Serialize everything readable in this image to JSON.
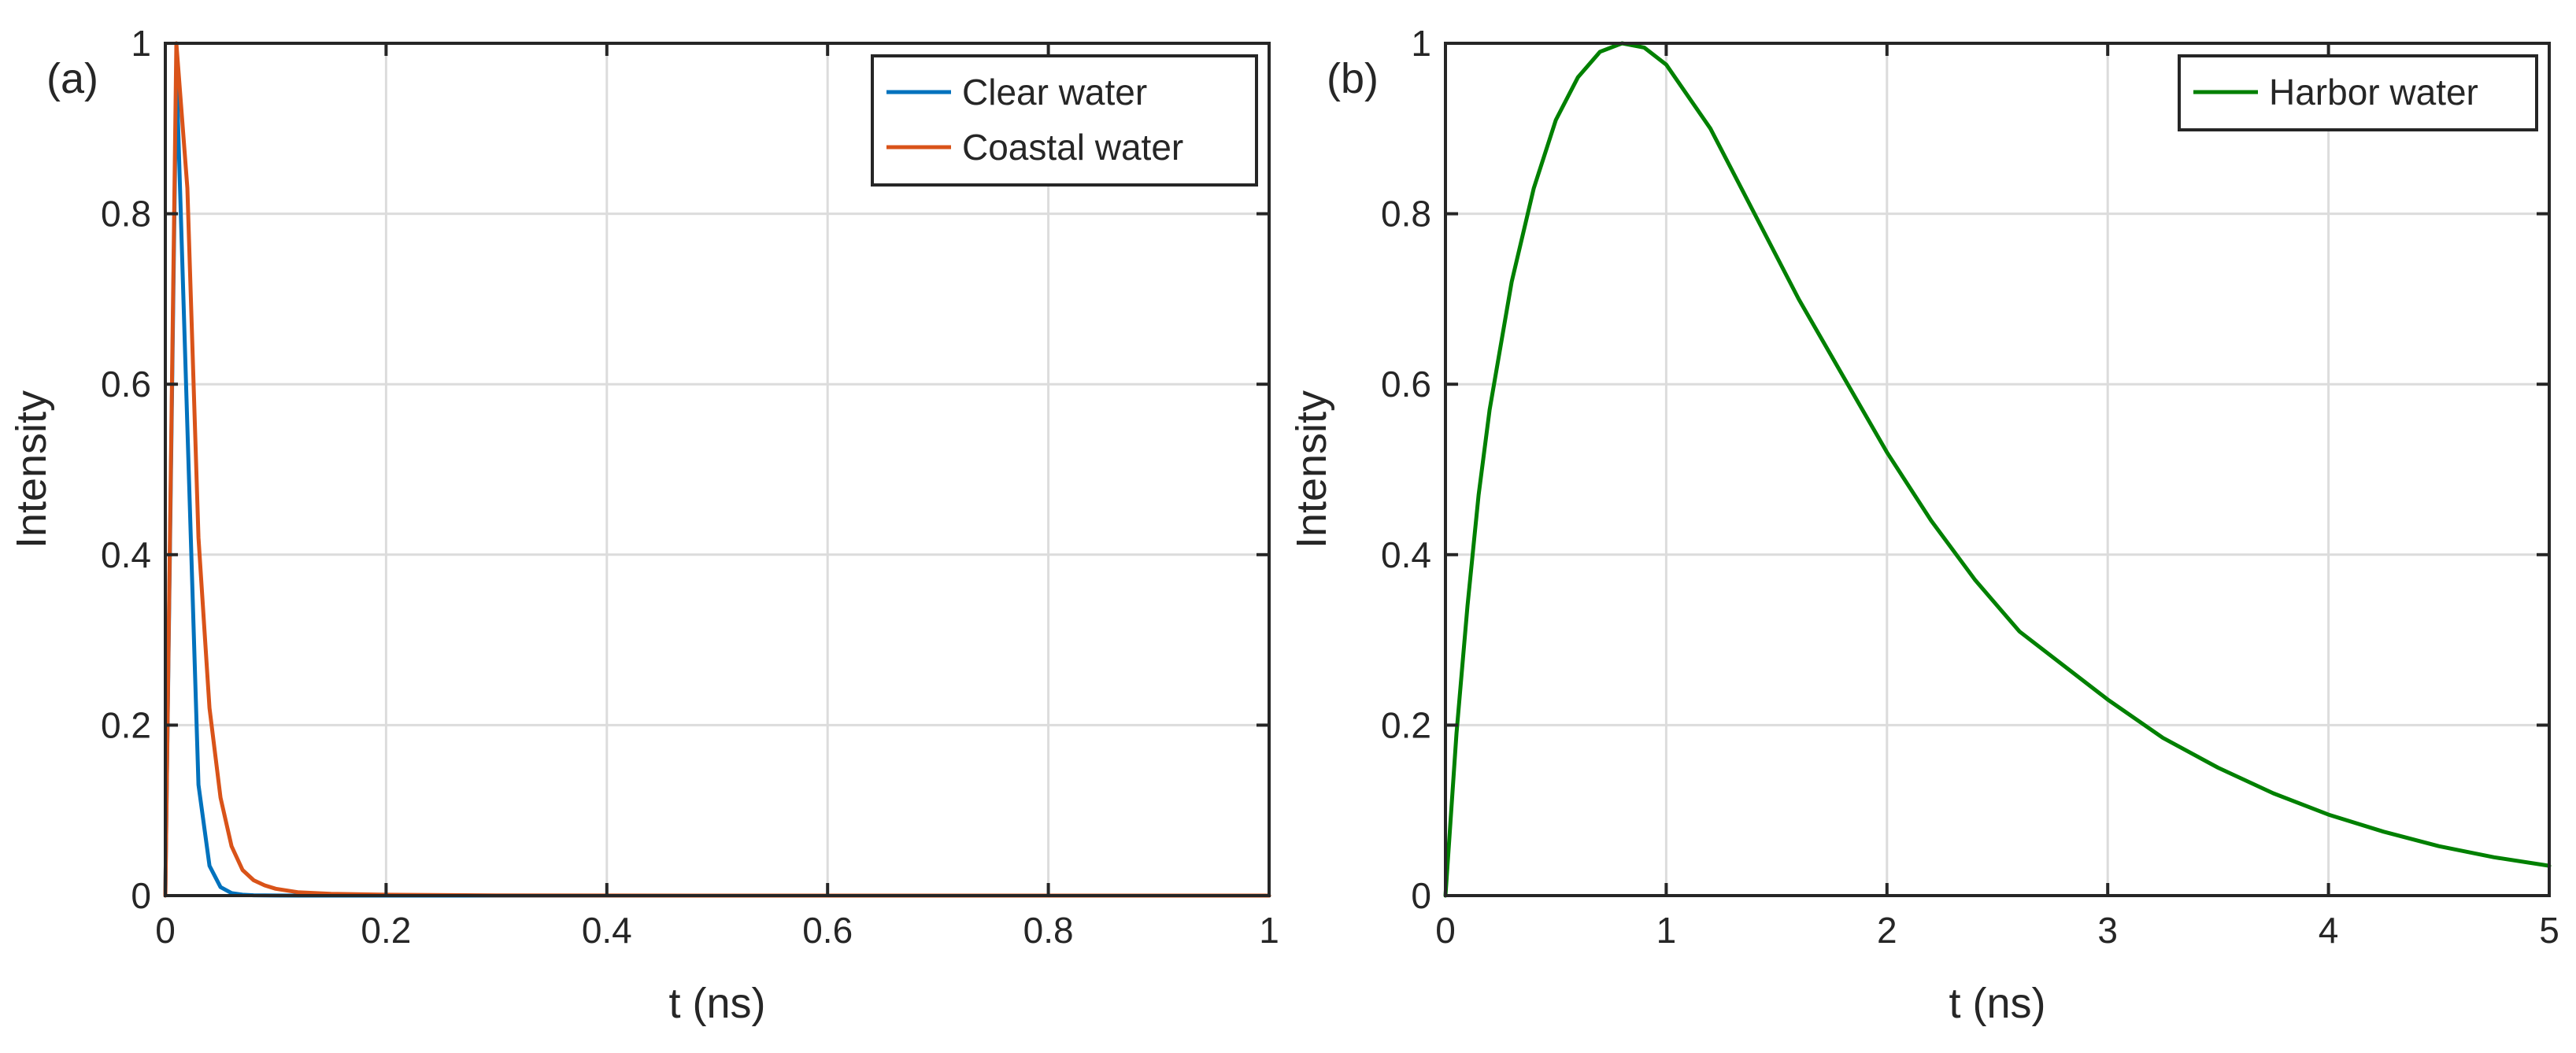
{
  "chart_data": [
    {
      "type": "line",
      "panel_label": "(a)",
      "title": "",
      "xlabel": "t (ns)",
      "ylabel": "Intensity",
      "xlim": [
        0,
        1
      ],
      "ylim": [
        0,
        1
      ],
      "grid": true,
      "legend_position": "top-right",
      "x_ticks": [
        0,
        0.2,
        0.4,
        0.6,
        0.8,
        1
      ],
      "x_tick_labels": [
        "0",
        "0.2",
        "0.4",
        "0.6",
        "0.8",
        "1"
      ],
      "y_ticks": [
        0,
        0.2,
        0.4,
        0.6,
        0.8,
        1
      ],
      "y_tick_labels": [
        "0",
        "0.2",
        "0.4",
        "0.6",
        "0.8",
        "1"
      ],
      "series": [
        {
          "name": "Clear water",
          "color": "#0072BD",
          "x": [
            0,
            0.01,
            0.02,
            0.03,
            0.04,
            0.05,
            0.06,
            0.07,
            0.08,
            0.1,
            0.15,
            0.2,
            0.3,
            0.5,
            1.0
          ],
          "y": [
            0,
            0.97,
            0.55,
            0.13,
            0.035,
            0.01,
            0.003,
            0.001,
            0.0004,
            0.0001,
            0,
            0,
            0,
            0,
            0
          ]
        },
        {
          "name": "Coastal water",
          "color": "#D95319",
          "x": [
            0,
            0.01,
            0.02,
            0.03,
            0.04,
            0.05,
            0.06,
            0.07,
            0.08,
            0.09,
            0.1,
            0.12,
            0.15,
            0.2,
            0.3,
            0.5,
            1.0
          ],
          "y": [
            0,
            1.0,
            0.83,
            0.42,
            0.22,
            0.115,
            0.058,
            0.03,
            0.018,
            0.012,
            0.008,
            0.004,
            0.002,
            0.001,
            0.0003,
            0,
            0
          ]
        }
      ]
    },
    {
      "type": "line",
      "panel_label": "(b)",
      "title": "",
      "xlabel": "t (ns)",
      "ylabel": "Intensity",
      "xlim": [
        0,
        5
      ],
      "ylim": [
        0,
        1
      ],
      "grid": true,
      "legend_position": "top-right",
      "x_ticks": [
        0,
        1,
        2,
        3,
        4,
        5
      ],
      "x_tick_labels": [
        "0",
        "1",
        "2",
        "3",
        "4",
        "5"
      ],
      "y_ticks": [
        0,
        0.2,
        0.4,
        0.6,
        0.8,
        1
      ],
      "y_tick_labels": [
        "0",
        "0.2",
        "0.4",
        "0.6",
        "0.8",
        "1"
      ],
      "series": [
        {
          "name": "Harbor water",
          "color": "#008000",
          "x": [
            0,
            0.05,
            0.1,
            0.15,
            0.2,
            0.3,
            0.4,
            0.5,
            0.6,
            0.7,
            0.8,
            0.9,
            1.0,
            1.2,
            1.4,
            1.6,
            1.8,
            2.0,
            2.2,
            2.4,
            2.6,
            2.8,
            3.0,
            3.25,
            3.5,
            3.75,
            4.0,
            4.25,
            4.5,
            4.75,
            5.0
          ],
          "y": [
            0,
            0.19,
            0.34,
            0.47,
            0.57,
            0.72,
            0.83,
            0.91,
            0.96,
            0.99,
            1.0,
            0.995,
            0.975,
            0.9,
            0.8,
            0.7,
            0.61,
            0.52,
            0.44,
            0.37,
            0.31,
            0.27,
            0.23,
            0.185,
            0.15,
            0.12,
            0.095,
            0.075,
            0.058,
            0.045,
            0.035
          ]
        }
      ]
    }
  ]
}
